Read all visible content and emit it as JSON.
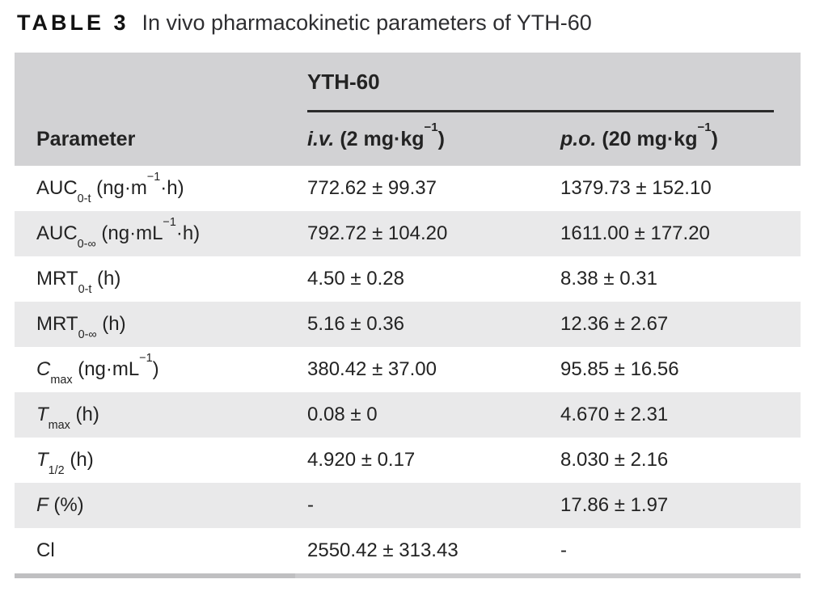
{
  "caption": {
    "label": "TABLE 3",
    "text": "In vivo pharmacokinetic parameters of YTH-60"
  },
  "table": {
    "group_header": "YTH-60",
    "columns": {
      "parameter": "Parameter",
      "iv": [
        [
          "i",
          "i.v."
        ],
        [
          "t",
          " (2 mg·kg"
        ],
        [
          "sup",
          "−1"
        ],
        [
          "t",
          ")"
        ]
      ],
      "po": [
        [
          "i",
          "p.o."
        ],
        [
          "t",
          " (20 mg·kg"
        ],
        [
          "sup",
          "−1"
        ],
        [
          "t",
          ")"
        ]
      ]
    },
    "rows": [
      {
        "param": [
          [
            "t",
            "AUC"
          ],
          [
            "sub",
            "0-t"
          ],
          [
            "t",
            " (ng·m"
          ],
          [
            "sup",
            "−1"
          ],
          [
            "t",
            "·h)"
          ]
        ],
        "iv": "772.62 ± 99.37",
        "po": "1379.73 ± 152.10"
      },
      {
        "param": [
          [
            "t",
            "AUC"
          ],
          [
            "sub",
            "0-∞"
          ],
          [
            "t",
            " (ng·mL"
          ],
          [
            "sup",
            "−1"
          ],
          [
            "t",
            "·h)"
          ]
        ],
        "iv": "792.72 ± 104.20",
        "po": "1611.00 ± 177.20"
      },
      {
        "param": [
          [
            "t",
            "MRT"
          ],
          [
            "sub",
            "0-t"
          ],
          [
            "t",
            " (h)"
          ]
        ],
        "iv": "4.50 ± 0.28",
        "po": "8.38 ± 0.31"
      },
      {
        "param": [
          [
            "t",
            "MRT"
          ],
          [
            "sub",
            "0-∞"
          ],
          [
            "t",
            " (h)"
          ]
        ],
        "iv": "5.16 ± 0.36",
        "po": "12.36 ± 2.67"
      },
      {
        "param": [
          [
            "i",
            "C"
          ],
          [
            "sub",
            "max"
          ],
          [
            "t",
            " (ng·mL"
          ],
          [
            "sup",
            "−1"
          ],
          [
            "t",
            ")"
          ]
        ],
        "iv": "380.42 ± 37.00",
        "po": "95.85 ± 16.56"
      },
      {
        "param": [
          [
            "i",
            "T"
          ],
          [
            "sub",
            "max"
          ],
          [
            "t",
            " (h)"
          ]
        ],
        "iv": "0.08 ± 0",
        "po": "4.670 ± 2.31"
      },
      {
        "param": [
          [
            "i",
            "T"
          ],
          [
            "sub",
            "1/2"
          ],
          [
            "t",
            " (h)"
          ]
        ],
        "iv": "4.920 ± 0.17",
        "po": "8.030 ± 2.16"
      },
      {
        "param": [
          [
            "i",
            "F"
          ],
          [
            "t",
            " (%)"
          ]
        ],
        "iv": "-",
        "po": "17.86 ± 1.97"
      },
      {
        "param": [
          [
            "t",
            "Cl"
          ]
        ],
        "iv": "2550.42 ± 313.43",
        "po": "-"
      }
    ]
  },
  "colors": {
    "header_bg": "#d2d2d4",
    "row_alt_bg": "#e9e9ea",
    "rule": "#2b2b2b",
    "text": "#232323",
    "bottom_bar_left": "#bfbfc1",
    "bottom_bar_right": "#cbcbcd"
  }
}
